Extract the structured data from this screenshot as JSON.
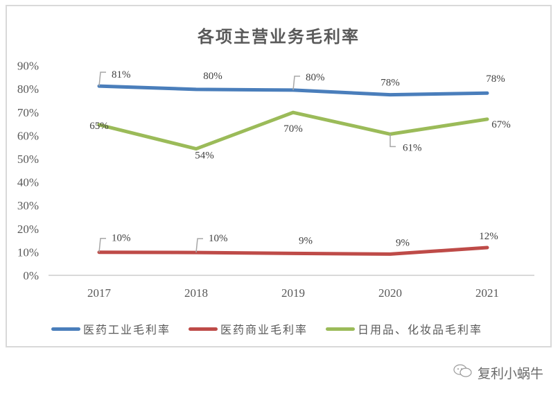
{
  "chart_data": {
    "type": "line",
    "title": "各项主营业务毛利率",
    "xlabel": "",
    "ylabel": "",
    "categories": [
      "2017",
      "2018",
      "2019",
      "2020",
      "2021"
    ],
    "yticks": [
      "0%",
      "10%",
      "20%",
      "30%",
      "40%",
      "50%",
      "60%",
      "70%",
      "80%",
      "90%"
    ],
    "ylim": [
      0,
      90
    ],
    "grid": false,
    "legend_position": "bottom",
    "series": [
      {
        "name": "医药工业毛利率",
        "color": "#4a7ebb",
        "values": [
          81,
          80,
          80,
          78,
          78
        ],
        "labels": [
          "81%",
          "80%",
          "80%",
          "78%",
          "78%"
        ],
        "precise_values": [
          81.2,
          79.8,
          79.5,
          77.5,
          78.2
        ]
      },
      {
        "name": "医药商业毛利率",
        "color": "#be4b48",
        "values": [
          10,
          10,
          9,
          9,
          12
        ],
        "labels": [
          "10%",
          "10%",
          "9%",
          "9%",
          "12%"
        ],
        "precise_values": [
          9.9,
          9.8,
          9.4,
          9.1,
          11.9
        ]
      },
      {
        "name": "日用品、化妆品毛利率",
        "color": "#9bbb59",
        "values": [
          65,
          54,
          70,
          61,
          67
        ],
        "labels": [
          "65%",
          "54%",
          "70%",
          "61%",
          "67%"
        ],
        "precise_values": [
          64.6,
          54.3,
          69.9,
          60.6,
          67.0
        ]
      }
    ]
  },
  "watermark": {
    "icon": "wechat-icon",
    "text": "复利小蜗牛"
  }
}
